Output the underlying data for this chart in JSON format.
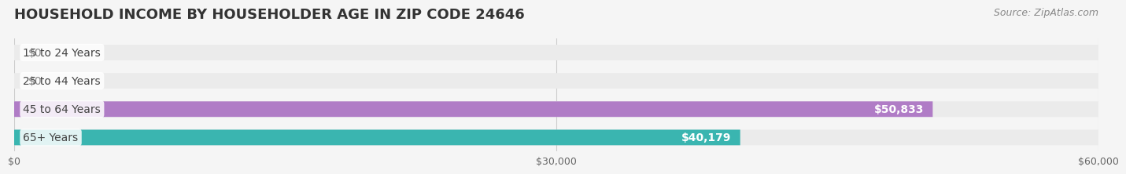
{
  "title": "HOUSEHOLD INCOME BY HOUSEHOLDER AGE IN ZIP CODE 24646",
  "source": "Source: ZipAtlas.com",
  "categories": [
    "15 to 24 Years",
    "25 to 44 Years",
    "45 to 64 Years",
    "65+ Years"
  ],
  "values": [
    0,
    0,
    50833,
    40179
  ],
  "bar_colors": [
    "#f4a0a8",
    "#a8c4e0",
    "#b07cc6",
    "#3ab5b0"
  ],
  "label_colors": [
    "#888888",
    "#888888",
    "#ffffff",
    "#ffffff"
  ],
  "value_labels": [
    "$0",
    "$0",
    "$50,833",
    "$40,179"
  ],
  "xlim": [
    0,
    60000
  ],
  "xticks": [
    0,
    30000,
    60000
  ],
  "xtick_labels": [
    "$0",
    "$30,000",
    "$60,000"
  ],
  "background_color": "#f5f5f5",
  "bar_background_color": "#ebebeb",
  "title_fontsize": 13,
  "source_fontsize": 9,
  "label_fontsize": 10,
  "tick_fontsize": 9,
  "bar_height": 0.55,
  "fig_width": 14.06,
  "fig_height": 2.33
}
